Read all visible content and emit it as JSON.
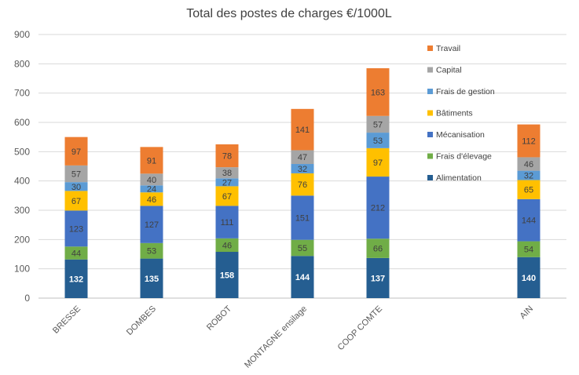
{
  "chart_data": {
    "type": "bar",
    "stacked": true,
    "title": "Total des postes de charges €/1000L",
    "xlabel": "",
    "ylabel": "",
    "ylim": [
      0,
      900
    ],
    "yticks": [
      0,
      100,
      200,
      300,
      400,
      500,
      600,
      700,
      800,
      900
    ],
    "grid": true,
    "legend_position": "right",
    "categories": [
      "BRESSE",
      "DOMBES",
      "ROBOT",
      "MONTAGNE ensilage",
      "COOP COMTE",
      "",
      "AIN"
    ],
    "series": [
      {
        "name": "Alimentation",
        "color": "#255E91",
        "label_color": "#ffffff",
        "values": [
          132,
          135,
          158,
          144,
          137,
          null,
          140
        ]
      },
      {
        "name": "Frais d'élevage",
        "color": "#70AD47",
        "label_color": "#404040",
        "values": [
          44,
          53,
          46,
          55,
          66,
          null,
          54
        ]
      },
      {
        "name": "Mécanisation",
        "color": "#4472C4",
        "label_color": "#404040",
        "values": [
          123,
          127,
          111,
          151,
          212,
          null,
          144
        ]
      },
      {
        "name": "Bâtiments",
        "color": "#FFC000",
        "label_color": "#404040",
        "values": [
          67,
          46,
          67,
          76,
          97,
          null,
          65
        ]
      },
      {
        "name": "Frais de gestion",
        "color": "#5B9BD5",
        "label_color": "#404040",
        "values": [
          30,
          24,
          27,
          32,
          53,
          null,
          32
        ]
      },
      {
        "name": "Capital",
        "color": "#A5A5A5",
        "label_color": "#404040",
        "values": [
          57,
          40,
          38,
          47,
          57,
          null,
          46
        ]
      },
      {
        "name": "Travail",
        "color": "#ED7D31",
        "label_color": "#404040",
        "values": [
          97,
          91,
          78,
          141,
          163,
          null,
          112
        ]
      }
    ]
  }
}
